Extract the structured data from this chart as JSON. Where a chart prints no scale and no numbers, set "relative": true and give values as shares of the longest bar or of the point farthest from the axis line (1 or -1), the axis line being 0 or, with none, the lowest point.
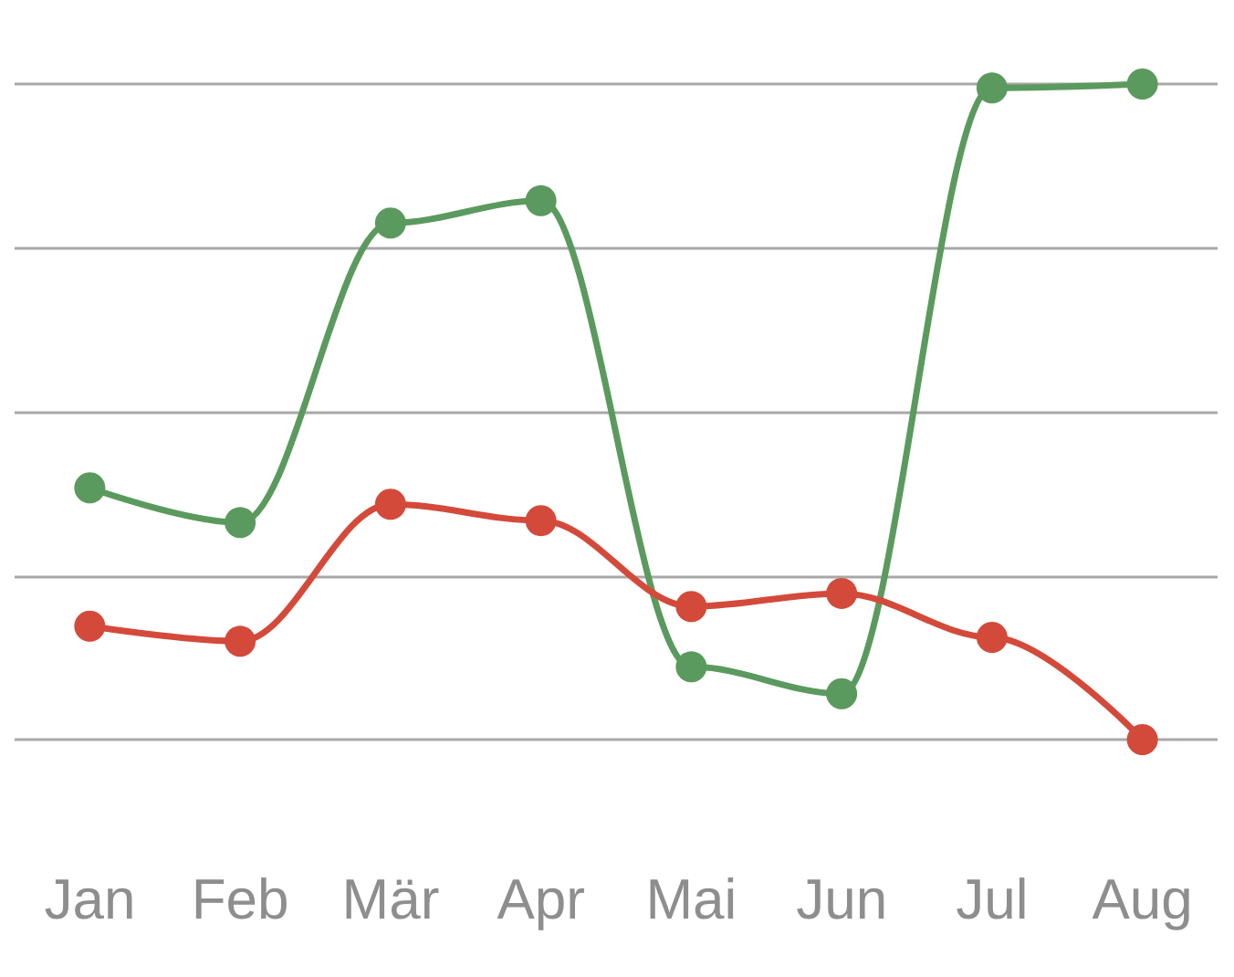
{
  "chart_data": {
    "type": "line",
    "relative": true,
    "grid": "y",
    "marker": "circle",
    "line_style": "solid",
    "categories": [
      "Jan",
      "Feb",
      "Mär",
      "Apr",
      "Mai",
      "Jun",
      "Jul",
      "Aug"
    ],
    "series": [
      {
        "color": "#5b9a5e",
        "values": [
          0.384,
          0.331,
          0.788,
          0.822,
          0.111,
          0.07,
          0.994,
          1
        ]
      },
      {
        "color": "#d44a3a",
        "values": [
          0.173,
          0.15,
          0.359,
          0.334,
          0.203,
          0.223,
          0.156,
          0
        ]
      }
    ]
  }
}
